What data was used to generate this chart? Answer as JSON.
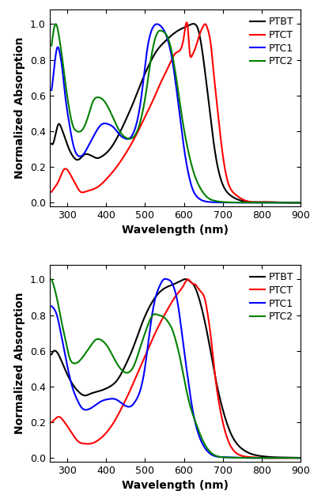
{
  "xlabel": "Wavelength (nm)",
  "ylabel": "Normalized Absorption",
  "xlim": [
    255,
    900
  ],
  "ylim": [
    -0.02,
    1.08
  ],
  "yticks": [
    0.0,
    0.2,
    0.4,
    0.6,
    0.8,
    1.0
  ],
  "xticks": [
    300,
    400,
    500,
    600,
    700,
    800,
    900
  ],
  "colors": {
    "PTBT": "#000000",
    "PTCT": "#ff0000",
    "PTC1": "#0000ff",
    "PTC2": "#008000"
  },
  "legend_labels": [
    "PTBT",
    "PTCT",
    "PTC1",
    "PTC2"
  ],
  "solution": {
    "PTBT": {
      "x": [
        260,
        270,
        278,
        285,
        295,
        305,
        315,
        325,
        335,
        345,
        355,
        365,
        375,
        390,
        410,
        430,
        450,
        470,
        490,
        510,
        530,
        550,
        570,
        590,
        610,
        620,
        628,
        635,
        645,
        655,
        665,
        675,
        685,
        700,
        720,
        750,
        800,
        850,
        900
      ],
      "y": [
        0.33,
        0.38,
        0.44,
        0.42,
        0.36,
        0.3,
        0.26,
        0.24,
        0.25,
        0.27,
        0.27,
        0.26,
        0.25,
        0.26,
        0.3,
        0.37,
        0.46,
        0.56,
        0.67,
        0.77,
        0.85,
        0.9,
        0.94,
        0.97,
        0.99,
        1.0,
        1.0,
        0.98,
        0.88,
        0.72,
        0.54,
        0.36,
        0.22,
        0.1,
        0.04,
        0.01,
        0.003,
        0.001,
        0.0
      ]
    },
    "PTCT": {
      "x": [
        260,
        270,
        280,
        290,
        295,
        305,
        315,
        325,
        335,
        345,
        360,
        380,
        400,
        420,
        440,
        460,
        480,
        500,
        520,
        540,
        560,
        580,
        600,
        610,
        615,
        620,
        630,
        640,
        650,
        655,
        660,
        665,
        670,
        675,
        685,
        695,
        710,
        730,
        760,
        800,
        850,
        900
      ],
      "y": [
        0.06,
        0.09,
        0.13,
        0.18,
        0.19,
        0.17,
        0.13,
        0.09,
        0.06,
        0.06,
        0.07,
        0.09,
        0.13,
        0.18,
        0.24,
        0.31,
        0.39,
        0.48,
        0.57,
        0.67,
        0.76,
        0.84,
        0.93,
        0.98,
        0.84,
        0.82,
        0.87,
        0.94,
        0.99,
        1.0,
        0.98,
        0.94,
        0.87,
        0.76,
        0.55,
        0.35,
        0.14,
        0.05,
        0.01,
        0.003,
        0.001,
        0.0
      ]
    },
    "PTC1": {
      "x": [
        260,
        268,
        275,
        280,
        288,
        295,
        305,
        315,
        325,
        335,
        345,
        355,
        365,
        375,
        390,
        405,
        420,
        435,
        448,
        460,
        472,
        484,
        494,
        502,
        510,
        520,
        530,
        540,
        550,
        560,
        570,
        580,
        590,
        600,
        610,
        620,
        635,
        650,
        670,
        700,
        750,
        800,
        900
      ],
      "y": [
        0.63,
        0.78,
        0.87,
        0.85,
        0.74,
        0.6,
        0.45,
        0.33,
        0.27,
        0.26,
        0.28,
        0.32,
        0.36,
        0.4,
        0.44,
        0.44,
        0.42,
        0.38,
        0.36,
        0.36,
        0.4,
        0.5,
        0.65,
        0.8,
        0.91,
        0.98,
        1.0,
        0.99,
        0.96,
        0.9,
        0.8,
        0.65,
        0.48,
        0.31,
        0.18,
        0.09,
        0.03,
        0.01,
        0.003,
        0.001,
        0.0,
        0.0,
        0.0
      ]
    },
    "PTC2": {
      "x": [
        260,
        265,
        270,
        275,
        280,
        288,
        295,
        305,
        315,
        325,
        335,
        345,
        355,
        365,
        380,
        395,
        415,
        435,
        455,
        475,
        495,
        505,
        515,
        525,
        535,
        545,
        555,
        565,
        575,
        585,
        595,
        610,
        625,
        640,
        660,
        680,
        700,
        750,
        800,
        900
      ],
      "y": [
        0.88,
        0.96,
        1.0,
        0.98,
        0.92,
        0.8,
        0.68,
        0.53,
        0.43,
        0.4,
        0.4,
        0.43,
        0.49,
        0.56,
        0.59,
        0.57,
        0.49,
        0.4,
        0.36,
        0.38,
        0.52,
        0.65,
        0.8,
        0.91,
        0.96,
        0.96,
        0.94,
        0.88,
        0.77,
        0.63,
        0.48,
        0.3,
        0.17,
        0.09,
        0.03,
        0.01,
        0.004,
        0.001,
        0.0,
        0.0
      ]
    }
  },
  "film": {
    "PTBT": {
      "x": [
        260,
        270,
        280,
        290,
        300,
        315,
        330,
        345,
        360,
        375,
        390,
        410,
        430,
        450,
        470,
        490,
        510,
        530,
        550,
        570,
        590,
        600,
        608,
        615,
        625,
        635,
        650,
        665,
        680,
        700,
        720,
        750,
        800,
        850,
        900
      ],
      "y": [
        0.58,
        0.6,
        0.57,
        0.52,
        0.47,
        0.41,
        0.37,
        0.35,
        0.36,
        0.37,
        0.38,
        0.4,
        0.44,
        0.52,
        0.62,
        0.74,
        0.84,
        0.91,
        0.95,
        0.97,
        0.99,
        1.0,
        1.0,
        0.99,
        0.97,
        0.92,
        0.8,
        0.64,
        0.46,
        0.27,
        0.14,
        0.05,
        0.01,
        0.003,
        0.001
      ]
    },
    "PTCT": {
      "x": [
        260,
        270,
        280,
        290,
        300,
        315,
        330,
        345,
        360,
        380,
        400,
        420,
        440,
        460,
        480,
        500,
        520,
        540,
        560,
        580,
        600,
        610,
        620,
        630,
        640,
        648,
        655,
        660,
        668,
        678,
        695,
        715,
        740,
        770,
        800,
        850,
        900
      ],
      "y": [
        0.2,
        0.22,
        0.23,
        0.21,
        0.18,
        0.13,
        0.09,
        0.08,
        0.08,
        0.1,
        0.14,
        0.2,
        0.28,
        0.37,
        0.47,
        0.57,
        0.67,
        0.76,
        0.84,
        0.91,
        0.97,
        1.0,
        0.98,
        0.97,
        0.94,
        0.92,
        0.88,
        0.82,
        0.7,
        0.5,
        0.25,
        0.09,
        0.02,
        0.005,
        0.001,
        0.0,
        0.0
      ]
    },
    "PTC1": {
      "x": [
        260,
        268,
        275,
        282,
        290,
        300,
        313,
        325,
        338,
        350,
        362,
        375,
        390,
        408,
        423,
        438,
        452,
        464,
        476,
        488,
        498,
        507,
        516,
        526,
        537,
        548,
        558,
        566,
        575,
        583,
        590,
        600,
        610,
        620,
        635,
        650,
        670,
        700,
        750,
        800,
        900
      ],
      "y": [
        0.85,
        0.83,
        0.79,
        0.72,
        0.63,
        0.52,
        0.4,
        0.33,
        0.28,
        0.27,
        0.28,
        0.3,
        0.32,
        0.33,
        0.33,
        0.31,
        0.29,
        0.29,
        0.32,
        0.38,
        0.48,
        0.62,
        0.77,
        0.89,
        0.96,
        1.0,
        1.0,
        0.99,
        0.95,
        0.88,
        0.78,
        0.61,
        0.45,
        0.3,
        0.15,
        0.07,
        0.02,
        0.005,
        0.001,
        0.0,
        0.0
      ]
    },
    "PTC2": {
      "x": [
        260,
        265,
        270,
        278,
        285,
        295,
        305,
        318,
        330,
        345,
        358,
        372,
        388,
        405,
        425,
        448,
        470,
        488,
        505,
        520,
        535,
        548,
        560,
        570,
        580,
        590,
        600,
        615,
        630,
        648,
        665,
        685,
        710,
        750,
        800,
        900
      ],
      "y": [
        1.0,
        0.97,
        0.93,
        0.85,
        0.77,
        0.67,
        0.57,
        0.53,
        0.54,
        0.58,
        0.62,
        0.66,
        0.66,
        0.62,
        0.54,
        0.48,
        0.51,
        0.62,
        0.73,
        0.8,
        0.8,
        0.79,
        0.76,
        0.72,
        0.65,
        0.56,
        0.45,
        0.3,
        0.2,
        0.1,
        0.04,
        0.01,
        0.003,
        0.001,
        0.0,
        0.0
      ]
    }
  },
  "linewidth": 1.5,
  "font_size_label": 10,
  "font_size_tick": 9,
  "font_size_legend": 9
}
